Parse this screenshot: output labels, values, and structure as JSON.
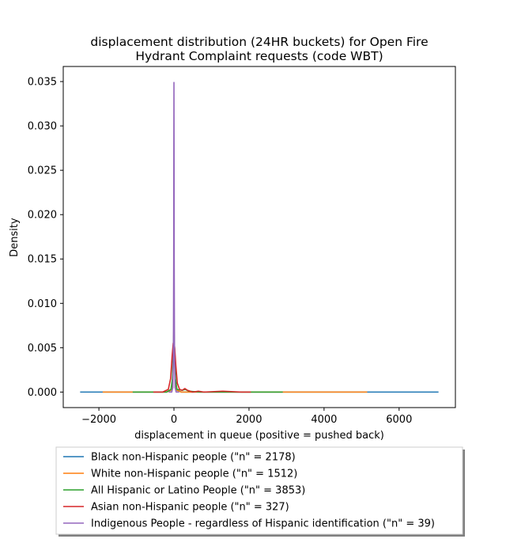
{
  "chart_data": {
    "type": "line",
    "title": "displacement distribution (24HR buckets) for Open Fire Hydrant Complaint requests (code WBT)",
    "title_lines": [
      "displacement distribution (24HR buckets) for Open Fire",
      "Hydrant Complaint requests (code WBT)"
    ],
    "xlabel": "displacement in queue (positive = pushed back)",
    "ylabel": "Density",
    "xlim": [
      -2950,
      7500
    ],
    "ylim": [
      -0.00175,
      0.0367
    ],
    "xticks": [
      -2000,
      0,
      2000,
      4000,
      6000
    ],
    "xtick_labels": [
      "−2000",
      "0",
      "2000",
      "4000",
      "6000"
    ],
    "yticks": [
      0.0,
      0.005,
      0.01,
      0.015,
      0.02,
      0.025,
      0.03,
      0.035
    ],
    "ytick_labels": [
      "0.000",
      "0.005",
      "0.010",
      "0.015",
      "0.020",
      "0.025",
      "0.030",
      "0.035"
    ],
    "grid": false,
    "legend_placement": "below",
    "series": [
      {
        "name": "Black non-Hispanic people (\"n\" = 2178)",
        "color": "#1f77b4",
        "points": [
          [
            -2500,
            0
          ],
          [
            -200,
            0
          ],
          [
            -80,
            0.0002
          ],
          [
            -40,
            0.001
          ],
          [
            -15,
            0.004
          ],
          [
            0,
            0.0065
          ],
          [
            15,
            0.004
          ],
          [
            40,
            0.001
          ],
          [
            80,
            0.0002
          ],
          [
            200,
            0
          ],
          [
            7050,
            0
          ]
        ]
      },
      {
        "name": "White non-Hispanic people (\"n\" = 1512)",
        "color": "#ff7f0e",
        "points": [
          [
            -1900,
            0
          ],
          [
            -200,
            0
          ],
          [
            -80,
            0.0002
          ],
          [
            -40,
            0.0012
          ],
          [
            -15,
            0.005
          ],
          [
            0,
            0.008
          ],
          [
            15,
            0.005
          ],
          [
            40,
            0.0012
          ],
          [
            80,
            0.0002
          ],
          [
            200,
            0
          ],
          [
            5150,
            0
          ]
        ]
      },
      {
        "name": "All Hispanic or Latino People (\"n\" = 3853)",
        "color": "#2ca02c",
        "points": [
          [
            -1100,
            0
          ],
          [
            -200,
            0
          ],
          [
            -80,
            0.0003
          ],
          [
            -40,
            0.0015
          ],
          [
            -15,
            0.005
          ],
          [
            0,
            0.0075
          ],
          [
            15,
            0.005
          ],
          [
            40,
            0.0015
          ],
          [
            80,
            0.0003
          ],
          [
            220,
            0.0002
          ],
          [
            300,
            0.0003
          ],
          [
            400,
            0.0001
          ],
          [
            700,
            0
          ],
          [
            2900,
            0
          ]
        ]
      },
      {
        "name": "Asian non-Hispanic people (\"n\" = 327)",
        "color": "#d62728",
        "points": [
          [
            -550,
            0
          ],
          [
            -300,
            0
          ],
          [
            -150,
            0.0003
          ],
          [
            -90,
            0.0015
          ],
          [
            -50,
            0.004
          ],
          [
            -20,
            0.0055
          ],
          [
            0,
            0.0058
          ],
          [
            20,
            0.005
          ],
          [
            50,
            0.003
          ],
          [
            90,
            0.001
          ],
          [
            150,
            0.0003
          ],
          [
            220,
            0.0002
          ],
          [
            290,
            0.0004
          ],
          [
            360,
            0.0002
          ],
          [
            500,
            0
          ],
          [
            650,
            0.0001
          ],
          [
            800,
            0
          ],
          [
            1300,
            0.0001
          ],
          [
            1800,
            0
          ],
          [
            2050,
            0
          ]
        ]
      },
      {
        "name": "Indigenous People - regardless of Hispanic identification (\"n\" = 39)",
        "color": "#9467bd",
        "points": [
          [
            -140,
            0
          ],
          [
            -60,
            0
          ],
          [
            -30,
            0.0005
          ],
          [
            -15,
            0.004
          ],
          [
            -7,
            0.015
          ],
          [
            -3,
            0.028
          ],
          [
            0,
            0.0349
          ],
          [
            3,
            0.028
          ],
          [
            7,
            0.015
          ],
          [
            15,
            0.004
          ],
          [
            30,
            0.0005
          ],
          [
            60,
            0
          ],
          [
            140,
            0
          ]
        ]
      }
    ]
  }
}
